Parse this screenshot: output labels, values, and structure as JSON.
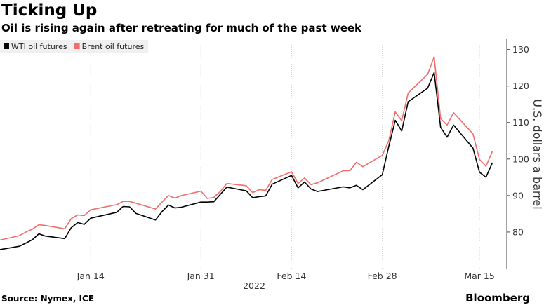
{
  "chart_data": {
    "type": "line",
    "title": "Ticking Up",
    "subtitle": "Oil is rising again after retreating for much of the past week",
    "y_axis_label": "U.S. dollars a barrel",
    "x_axis_label": "2022",
    "source": "Source: Nymex, ICE",
    "brand": "Bloomberg",
    "x": [
      "2021-12-31",
      "2022-01-03",
      "2022-01-04",
      "2022-01-05",
      "2022-01-06",
      "2022-01-07",
      "2022-01-10",
      "2022-01-11",
      "2022-01-12",
      "2022-01-13",
      "2022-01-14",
      "2022-01-18",
      "2022-01-19",
      "2022-01-20",
      "2022-01-21",
      "2022-01-24",
      "2022-01-25",
      "2022-01-26",
      "2022-01-27",
      "2022-01-28",
      "2022-01-31",
      "2022-02-01",
      "2022-02-02",
      "2022-02-03",
      "2022-02-04",
      "2022-02-07",
      "2022-02-08",
      "2022-02-09",
      "2022-02-10",
      "2022-02-11",
      "2022-02-14",
      "2022-02-15",
      "2022-02-16",
      "2022-02-17",
      "2022-02-18",
      "2022-02-22",
      "2022-02-23",
      "2022-02-24",
      "2022-02-25",
      "2022-02-28",
      "2022-03-01",
      "2022-03-02",
      "2022-03-03",
      "2022-03-04",
      "2022-03-07",
      "2022-03-08",
      "2022-03-09",
      "2022-03-10",
      "2022-03-11",
      "2022-03-14",
      "2022-03-15",
      "2022-03-16",
      "2022-03-17"
    ],
    "series": [
      {
        "name": "WTI oil futures",
        "color": "#000000",
        "values": [
          75.2,
          76.1,
          77.0,
          77.9,
          79.5,
          78.9,
          78.2,
          81.2,
          82.6,
          82.1,
          83.8,
          85.4,
          87.0,
          86.9,
          85.1,
          83.3,
          85.6,
          87.4,
          86.6,
          86.8,
          88.2,
          88.2,
          88.3,
          90.3,
          92.3,
          91.3,
          89.4,
          89.7,
          89.9,
          93.1,
          95.5,
          92.1,
          93.7,
          91.8,
          91.1,
          92.4,
          92.1,
          92.8,
          91.6,
          95.7,
          103.4,
          110.6,
          107.7,
          115.7,
          119.4,
          123.7,
          108.7,
          106.0,
          109.3,
          103.0,
          96.4,
          95.0,
          99.0
        ]
      },
      {
        "name": "Brent oil futures",
        "color": "#f26d6b",
        "values": [
          77.8,
          79.0,
          80.0,
          80.8,
          82.0,
          81.8,
          80.9,
          83.7,
          84.7,
          84.5,
          86.1,
          87.5,
          88.4,
          88.4,
          87.9,
          86.3,
          88.2,
          90.0,
          89.3,
          90.0,
          91.2,
          89.2,
          89.5,
          91.1,
          93.3,
          92.7,
          90.8,
          91.6,
          91.4,
          94.4,
          96.5,
          93.3,
          94.8,
          93.0,
          93.5,
          96.8,
          96.8,
          99.1,
          97.9,
          101.0,
          105.0,
          112.9,
          110.5,
          118.1,
          123.2,
          128.0,
          111.1,
          109.3,
          112.7,
          106.9,
          99.9,
          98.0,
          102.1
        ]
      }
    ],
    "xlim": [
      "2021-12-31",
      "2022-03-19"
    ],
    "xticks": [
      {
        "value": "2022-01-14",
        "label": "Jan 14"
      },
      {
        "value": "2022-01-31",
        "label": "Jan 31"
      },
      {
        "value": "2022-02-14",
        "label": "Feb 14"
      },
      {
        "value": "2022-02-28",
        "label": "Feb 28"
      },
      {
        "value": "2022-03-15",
        "label": "Mar 15"
      }
    ],
    "ylim": [
      70,
      133
    ],
    "yticks": [
      80,
      90,
      100,
      110,
      120,
      130
    ],
    "grid": "x",
    "legend": "top-left"
  }
}
